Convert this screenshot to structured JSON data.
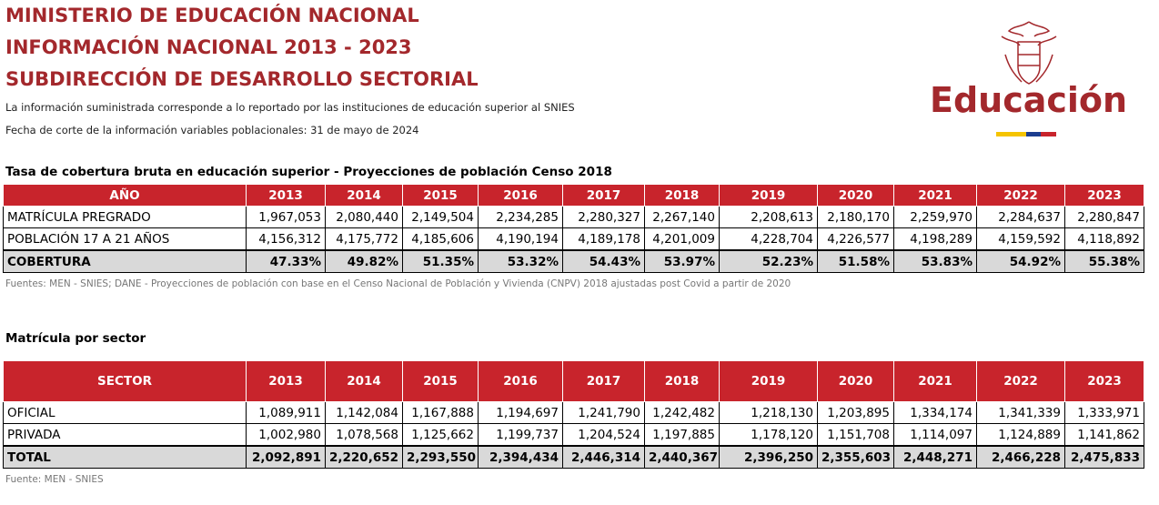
{
  "header": {
    "title_lines": [
      "MINISTERIO DE EDUCACIÓN NACIONAL",
      "INFORMACIÓN NACIONAL 2013 - 2023",
      "SUBDIRECCIÓN DE DESARROLLO SECTORIAL"
    ],
    "notes": [
      "La información suministrada corresponde a lo reportado por las instituciones de educación superior al SNIES",
      "Fecha de corte de la información variables poblacionales: 31 de mayo de 2024"
    ]
  },
  "logo": {
    "text": "Educación"
  },
  "table1": {
    "title": "Tasa de cobertura bruta en educación superior - Proyecciones de población Censo 2018",
    "header": [
      "AÑO",
      "2013",
      "2014",
      "2015",
      "2016",
      "2017",
      "2018",
      "2019",
      "2020",
      "2021",
      "2022",
      "2023"
    ],
    "rows": [
      [
        "MATRÍCULA PREGRADO",
        "1,967,053",
        "2,080,440",
        "2,149,504",
        "2,234,285",
        "2,280,327",
        "2,267,140",
        "2,208,613",
        "2,180,170",
        "2,259,970",
        "2,284,637",
        "2,280,847"
      ],
      [
        "POBLACIÓN 17 A 21 AÑOS",
        "4,156,312",
        "4,175,772",
        "4,185,606",
        "4,190,194",
        "4,189,178",
        "4,201,009",
        "4,228,704",
        "4,226,577",
        "4,198,289",
        "4,159,592",
        "4,118,892"
      ]
    ],
    "total": [
      "COBERTURA",
      "47.33%",
      "49.82%",
      "51.35%",
      "53.32%",
      "54.43%",
      "53.97%",
      "52.23%",
      "51.58%",
      "53.83%",
      "54.92%",
      "55.38%"
    ],
    "source": "Fuentes: MEN - SNIES; DANE - Proyecciones de población con base en el Censo Nacional de Población y Vivienda (CNPV) 2018 ajustadas post Covid a partir de 2020"
  },
  "table2": {
    "title": "Matrícula por sector",
    "header": [
      "SECTOR",
      "2013",
      "2014",
      "2015",
      "2016",
      "2017",
      "2018",
      "2019",
      "2020",
      "2021",
      "2022",
      "2023"
    ],
    "rows": [
      [
        "OFICIAL",
        "1,089,911",
        "1,142,084",
        "1,167,888",
        "1,194,697",
        "1,241,790",
        "1,242,482",
        "1,218,130",
        "1,203,895",
        "1,334,174",
        "1,341,339",
        "1,333,971"
      ],
      [
        "PRIVADA",
        "1,002,980",
        "1,078,568",
        "1,125,662",
        "1,199,737",
        "1,204,524",
        "1,197,885",
        "1,178,120",
        "1,151,708",
        "1,114,097",
        "1,124,889",
        "1,141,862"
      ]
    ],
    "total": [
      "TOTAL",
      "2,092,891",
      "2,220,652",
      "2,293,550",
      "2,394,434",
      "2,446,314",
      "2,440,367",
      "2,396,250",
      "2,355,603",
      "2,448,271",
      "2,466,228",
      "2,475,833"
    ],
    "source": "Fuente: MEN - SNIES"
  }
}
